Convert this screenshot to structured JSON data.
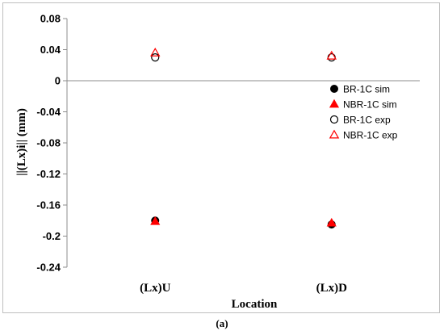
{
  "caption": "(a)",
  "chart_data": {
    "type": "scatter",
    "title": "",
    "xlabel": "Location",
    "ylabel": "||(Lx)i||   (mm)",
    "categories": [
      "(Lx)U",
      "(Lx)D"
    ],
    "ylim": [
      -0.24,
      0.08
    ],
    "yticks": [
      0.08,
      0.04,
      0,
      -0.04,
      -0.08,
      -0.12,
      -0.16,
      -0.2,
      -0.24
    ],
    "grid": false,
    "legend_position": "right",
    "series": [
      {
        "name": "BR-1C sim",
        "marker": "circle-filled",
        "color": "#000000",
        "values": [
          -0.18,
          -0.185
        ]
      },
      {
        "name": "NBR-1C sim",
        "marker": "triangle-filled",
        "color": "#ff0000",
        "values": [
          -0.181,
          -0.183
        ]
      },
      {
        "name": "BR-1C exp",
        "marker": "circle-open",
        "color": "#000000",
        "values": [
          0.03,
          0.03
        ]
      },
      {
        "name": "NBR-1C exp",
        "marker": "triangle-open",
        "color": "#ff0000",
        "values": [
          0.036,
          0.032
        ]
      }
    ]
  }
}
